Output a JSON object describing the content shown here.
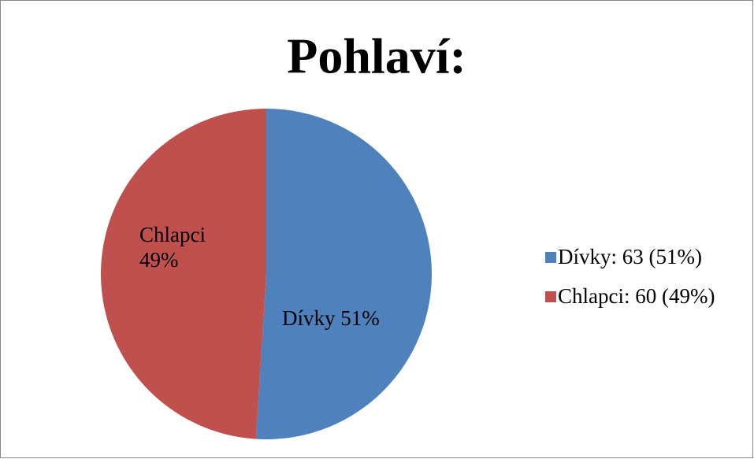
{
  "chart_data": {
    "type": "pie",
    "title": "Pohlaví:",
    "categories": [
      "Dívky",
      "Chlapci"
    ],
    "values": [
      51,
      49
    ],
    "value_labels": [
      "Dívky 51%",
      "Chlapci 49%"
    ],
    "legend": [
      "Dívky: 63 (51%)",
      "Chlapci: 60 (49%)"
    ],
    "colors": [
      "#4f81bd",
      "#c0504d"
    ],
    "start_angle": 0,
    "direction": "clockwise"
  }
}
